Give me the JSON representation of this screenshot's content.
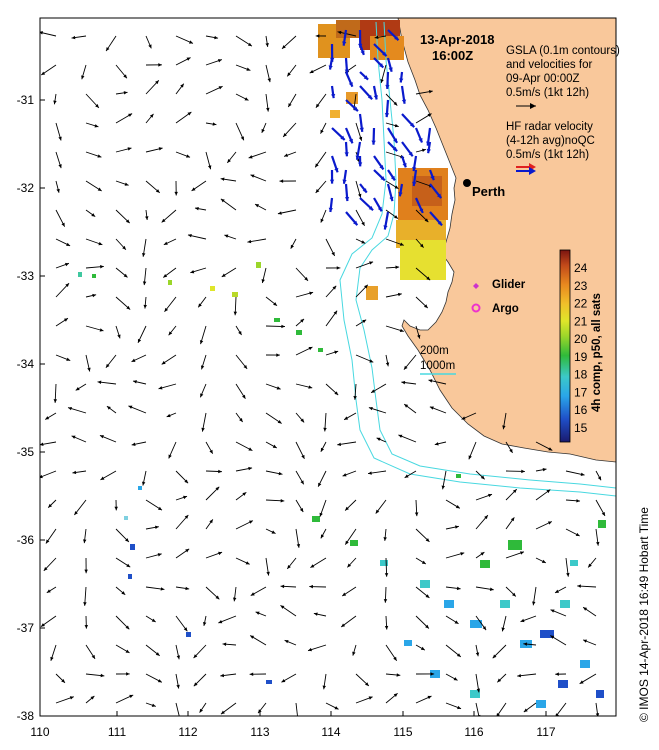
{
  "title": {
    "date": "13-Apr-2018",
    "time": "16:00Z"
  },
  "gsla_note": {
    "line1": "GSLA (0.1m contours)",
    "line2": "and velocities for",
    "line3": "09-Apr 00:00Z",
    "line4": "0.5m/s (1kt 12h)"
  },
  "hf_note": {
    "line1": "HF radar velocity",
    "line2": "(4-12h avg)noQC",
    "line3": "0.5m/s (1kt 12h)"
  },
  "city_label": "Perth",
  "legend": {
    "glider": "Glider",
    "argo": "Argo",
    "contour_200": "200m",
    "contour_1000": "1000m"
  },
  "colorbar": {
    "title": "4h comp, p50, all sats",
    "ticks": [
      "24",
      "23",
      "22",
      "21",
      "20",
      "19",
      "18",
      "17",
      "16",
      "15"
    ]
  },
  "credit": "© IMOS 14-Apr-2018 16:49 Hobart Time",
  "axes": {
    "x_ticks": [
      "110",
      "111",
      "112",
      "113",
      "114",
      "115",
      "116",
      "117"
    ],
    "y_ticks": [
      "-31",
      "-32",
      "-33",
      "-34",
      "-35",
      "-36",
      "-37",
      "-38"
    ]
  },
  "colors": {
    "land": "#f9c89b",
    "contour": "#48d8e0",
    "hf_arrow": "#0a1acc",
    "glider": "#cc33cc",
    "argo": "#ee33cc"
  }
}
